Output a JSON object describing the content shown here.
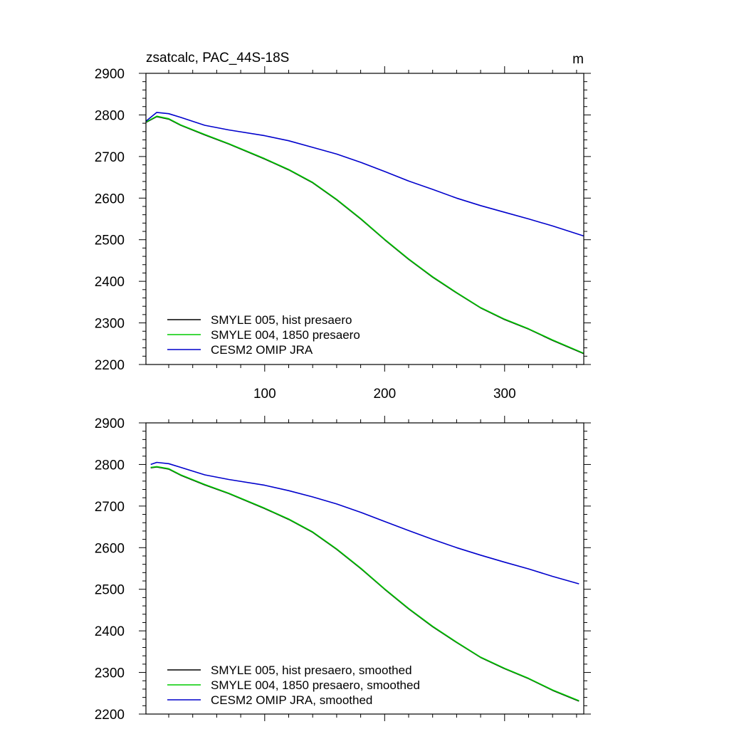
{
  "chart_data": [
    {
      "type": "line",
      "title": "zsatcalc, PAC_44S-18S",
      "units": "m",
      "xlim": [
        1,
        366
      ],
      "ylim": [
        2200,
        2900
      ],
      "yticks": [
        2200,
        2300,
        2400,
        2500,
        2600,
        2700,
        2800,
        2900
      ],
      "xticks": [
        100,
        200,
        300
      ],
      "show_xtick_labels": true,
      "grid": false,
      "legend_placement": "bottom-left",
      "series": [
        {
          "name": "SMYLE 005, hist presaero",
          "color": "#000000",
          "x": [
            1,
            10,
            20,
            30,
            50,
            70,
            100,
            120,
            140,
            160,
            180,
            200,
            220,
            240,
            260,
            280,
            300,
            320,
            340,
            366
          ],
          "values": [
            2782,
            2796,
            2790,
            2775,
            2752,
            2730,
            2694,
            2668,
            2637,
            2596,
            2550,
            2500,
            2453,
            2410,
            2372,
            2336,
            2308,
            2285,
            2258,
            2226
          ]
        },
        {
          "name": "SMYLE 004, 1850 presaero",
          "color": "#00cc00",
          "x": [
            1,
            10,
            20,
            30,
            50,
            70,
            100,
            120,
            140,
            160,
            180,
            200,
            220,
            240,
            260,
            280,
            300,
            320,
            340,
            366
          ],
          "values": [
            2783,
            2797,
            2791,
            2776,
            2753,
            2731,
            2695,
            2669,
            2638,
            2597,
            2551,
            2501,
            2454,
            2411,
            2373,
            2337,
            2309,
            2286,
            2259,
            2227
          ]
        },
        {
          "name": "CESM2 OMIP JRA",
          "color": "#0000cc",
          "x": [
            1,
            10,
            20,
            30,
            50,
            70,
            100,
            120,
            140,
            160,
            180,
            200,
            220,
            240,
            260,
            280,
            300,
            320,
            340,
            366
          ],
          "values": [
            2785,
            2806,
            2803,
            2794,
            2775,
            2764,
            2750,
            2738,
            2722,
            2706,
            2686,
            2664,
            2641,
            2621,
            2600,
            2582,
            2566,
            2550,
            2533,
            2509
          ]
        }
      ]
    },
    {
      "type": "line",
      "title": "",
      "units": "",
      "xlim": [
        1,
        366
      ],
      "ylim": [
        2200,
        2900
      ],
      "yticks": [
        2200,
        2300,
        2400,
        2500,
        2600,
        2700,
        2800,
        2900
      ],
      "xticks": [
        100,
        200,
        300
      ],
      "show_xtick_labels": false,
      "grid": false,
      "legend_placement": "bottom-left",
      "series": [
        {
          "name": "SMYLE 005, hist presaero, smoothed",
          "color": "#000000",
          "x": [
            5,
            10,
            20,
            30,
            50,
            70,
            100,
            120,
            140,
            160,
            180,
            200,
            220,
            240,
            260,
            280,
            300,
            320,
            340,
            362
          ],
          "values": [
            2792,
            2794,
            2789,
            2774,
            2751,
            2730,
            2694,
            2668,
            2637,
            2596,
            2550,
            2500,
            2453,
            2410,
            2372,
            2336,
            2309,
            2285,
            2257,
            2231
          ]
        },
        {
          "name": "SMYLE 004, 1850 presaero, smoothed",
          "color": "#00cc00",
          "x": [
            5,
            10,
            20,
            30,
            50,
            70,
            100,
            120,
            140,
            160,
            180,
            200,
            220,
            240,
            260,
            280,
            300,
            320,
            340,
            362
          ],
          "values": [
            2793,
            2795,
            2790,
            2775,
            2752,
            2731,
            2695,
            2669,
            2638,
            2597,
            2551,
            2501,
            2454,
            2411,
            2373,
            2337,
            2310,
            2286,
            2258,
            2232
          ]
        },
        {
          "name": "CESM2 OMIP JRA, smoothed",
          "color": "#0000cc",
          "x": [
            5,
            10,
            20,
            30,
            50,
            70,
            100,
            120,
            140,
            160,
            180,
            200,
            220,
            240,
            260,
            280,
            300,
            320,
            340,
            362
          ],
          "values": [
            2800,
            2805,
            2802,
            2793,
            2775,
            2764,
            2750,
            2737,
            2722,
            2705,
            2685,
            2663,
            2641,
            2620,
            2600,
            2582,
            2565,
            2549,
            2531,
            2513
          ]
        }
      ]
    }
  ]
}
